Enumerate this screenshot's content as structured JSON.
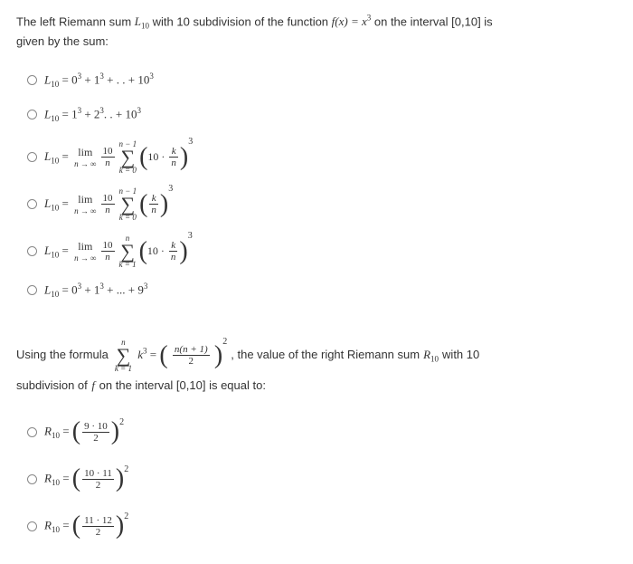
{
  "question1": {
    "prompt_prefix": "The left Riemann sum ",
    "prompt_var": "L",
    "prompt_sub": "10",
    "prompt_mid": " with 10 subdivision of the function ",
    "func_lhs": "f(x) = x",
    "func_exp": "3",
    "prompt_interval": " on the interval [0,10] is",
    "prompt_line2": "given by the sum:",
    "options": [
      {
        "text_a": "L",
        "sub": "10",
        "eq": " = 0",
        "e1": "3",
        "m1": " + 1",
        "e2": "3",
        "m2": " + . .  + 10",
        "e3": "3"
      },
      {
        "text_a": "L",
        "sub": "10",
        "eq": " = 1",
        "e1": "3",
        "m1": " + 2",
        "e2": "3",
        "m2": ". .  + 10",
        "e3": "3"
      },
      {
        "type": "lim",
        "sub": "10",
        "limsub": "n → ∞",
        "frac_n": "10",
        "frac_d": "n",
        "sig_top": "n − 1",
        "sig_bot": "k = 0",
        "inside_a": "10 ·",
        "inside_fn": "k",
        "inside_fd": "n",
        "exp": "3"
      },
      {
        "type": "lim",
        "sub": "10",
        "limsub": "n → ∞",
        "frac_n": "10",
        "frac_d": "n",
        "sig_top": "n − 1",
        "sig_bot": "k = 0",
        "inside_a": "",
        "inside_fn": "k",
        "inside_fd": "n",
        "exp": "3"
      },
      {
        "type": "lim",
        "sub": "10",
        "limsub": "n → ∞",
        "frac_n": "10",
        "frac_d": "n",
        "sig_top": "n",
        "sig_bot": "k = 1",
        "inside_a": "10 ·",
        "inside_fn": "k",
        "inside_fd": "n",
        "exp": "3"
      },
      {
        "text_a": "L",
        "sub": "10",
        "eq": " = 0",
        "e1": "3",
        "m1": " + 1",
        "e2": "3",
        "m2": " + ... + 9",
        "e3": "3"
      }
    ]
  },
  "question2": {
    "prompt_a": "Using the formula ",
    "sum_top": "n",
    "sum_bot": "k = 1",
    "sum_term": "k",
    "sum_exp": "3",
    "rhs_num": "n(n + 1)",
    "rhs_den": "2",
    "rhs_exp": "2",
    "prompt_b": " , the value of the right Riemann sum ",
    "rvar": "R",
    "rsub": "10",
    "prompt_c": " with 10",
    "prompt_line2_a": "subdivision of",
    "prompt_line2_f": "f",
    "prompt_line2_b": " on the interval [0,10] is equal to:",
    "options": [
      {
        "num": "9 · 10",
        "den": "2",
        "exp": "2"
      },
      {
        "num": "10 · 11",
        "den": "2",
        "exp": "2"
      },
      {
        "num": "11 · 12",
        "den": "2",
        "exp": "2"
      }
    ]
  }
}
